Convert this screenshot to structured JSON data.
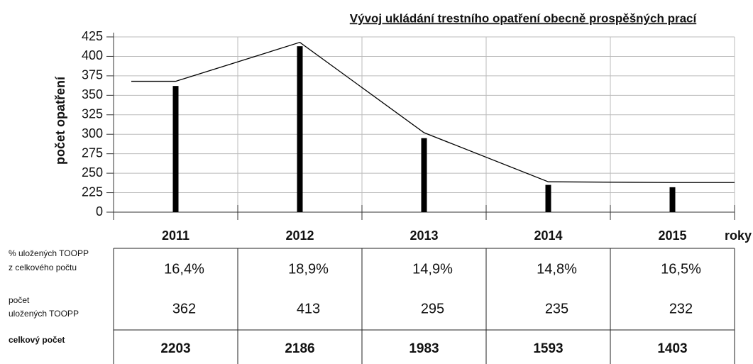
{
  "chart_data": {
    "type": "bar",
    "title": "Vývoj ukládání trestního opatření obecně prospěšných prací",
    "y_label": "počet opatření",
    "x_label": "roky",
    "categories": [
      "2011",
      "2012",
      "2013",
      "2014",
      "2015"
    ],
    "series": [
      {
        "type": "bar",
        "color": "#000000",
        "values": [
          362,
          413,
          295,
          235,
          232
        ]
      },
      {
        "type": "line",
        "color": "#000000",
        "values": [
          368,
          418,
          302,
          239,
          238
        ]
      }
    ],
    "ylim": [
      0,
      425
    ],
    "yticks": [
      0,
      225,
      250,
      275,
      300,
      325,
      350,
      375,
      400,
      425
    ],
    "axis_break": [
      0,
      200
    ],
    "grid": true
  },
  "table": {
    "rows": [
      {
        "label": [
          "% uložených TOOPP",
          "z celkového počtu"
        ],
        "values": [
          "16,4%",
          "18,9%",
          "14,9%",
          "14,8%",
          "16,5%"
        ]
      },
      {
        "label": [
          "počet",
          "uložených TOOPP"
        ],
        "values": [
          "362",
          "413",
          "295",
          "235",
          "232"
        ]
      },
      {
        "label": [
          "celkový počet"
        ],
        "values": [
          "2203",
          "2186",
          "1983",
          "1593",
          "1403"
        ],
        "bold": true
      }
    ]
  }
}
